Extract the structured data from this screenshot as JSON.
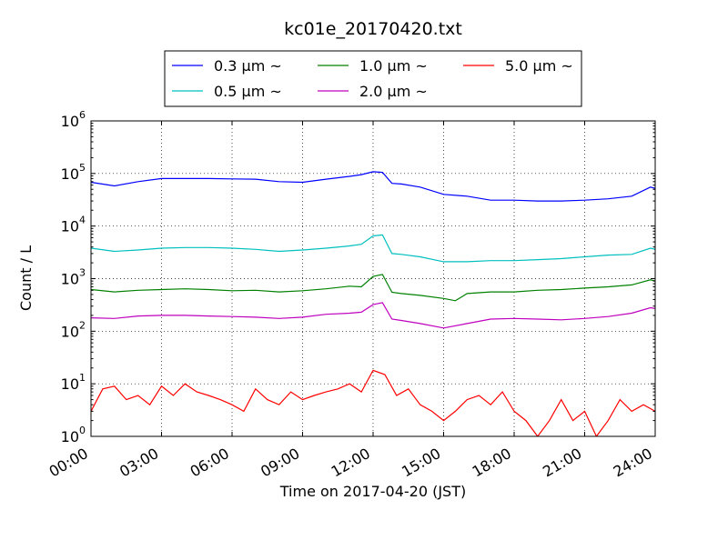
{
  "chart_data": {
    "type": "line",
    "title": "kc01e_20170420.txt",
    "xlabel": "Time on 2017-04-20 (JST)",
    "ylabel": "Count / L",
    "yscale": "log",
    "ylim": [
      1,
      1000000
    ],
    "xlim_hours": [
      0,
      24
    ],
    "grid": true,
    "legend_position": "top-center",
    "x_tick_labels": [
      "00:00",
      "03:00",
      "06:00",
      "09:00",
      "12:00",
      "15:00",
      "18:00",
      "21:00",
      "24:00"
    ],
    "y_tick_labels": [
      {
        "base": "10",
        "exp": "0"
      },
      {
        "base": "10",
        "exp": "1"
      },
      {
        "base": "10",
        "exp": "2"
      },
      {
        "base": "10",
        "exp": "3"
      },
      {
        "base": "10",
        "exp": "4"
      },
      {
        "base": "10",
        "exp": "5"
      },
      {
        "base": "10",
        "exp": "6"
      }
    ],
    "series": [
      {
        "name": "0.3 μm ~",
        "color": "#0000ff",
        "x": [
          0,
          1,
          2,
          3,
          4,
          5,
          6,
          7,
          8,
          9,
          10,
          11,
          11.5,
          12,
          12.4,
          12.8,
          13.2,
          14,
          15,
          16,
          17,
          18,
          19,
          20,
          21,
          22,
          23,
          23.8,
          24
        ],
        "y": [
          68000,
          58000,
          70000,
          80000,
          80000,
          80000,
          79000,
          78000,
          70000,
          68000,
          78000,
          88000,
          95000,
          108000,
          105000,
          65000,
          63000,
          55000,
          40000,
          37000,
          31000,
          31000,
          30000,
          30000,
          31000,
          33000,
          37000,
          55000,
          52000
        ]
      },
      {
        "name": "0.5 μm ~",
        "color": "#00bfbf",
        "x": [
          0,
          1,
          2,
          3,
          4,
          5,
          6,
          7,
          8,
          9,
          10,
          11,
          11.5,
          12,
          12.4,
          12.8,
          13.2,
          14,
          15,
          16,
          17,
          18,
          19,
          20,
          21,
          22,
          23,
          23.8,
          24
        ],
        "y": [
          3800,
          3300,
          3500,
          3800,
          3900,
          3900,
          3800,
          3600,
          3300,
          3500,
          3800,
          4200,
          4500,
          6500,
          6800,
          3000,
          2900,
          2600,
          2100,
          2100,
          2200,
          2200,
          2300,
          2400,
          2600,
          2800,
          2900,
          3800,
          3600
        ]
      },
      {
        "name": "1.0 μm ~",
        "color": "#008000",
        "x": [
          0,
          1,
          2,
          3,
          4,
          5,
          6,
          7,
          8,
          9,
          10,
          11,
          11.5,
          12,
          12.4,
          12.8,
          13.2,
          14,
          15,
          15.5,
          16,
          17,
          18,
          19,
          20,
          21,
          22,
          23,
          23.8,
          24
        ],
        "y": [
          620,
          560,
          600,
          620,
          640,
          620,
          590,
          600,
          560,
          590,
          640,
          720,
          700,
          1100,
          1200,
          550,
          520,
          480,
          420,
          380,
          520,
          560,
          560,
          600,
          620,
          660,
          700,
          760,
          950,
          900
        ]
      },
      {
        "name": "2.0 μm ~",
        "color": "#bf00bf",
        "x": [
          0,
          1,
          2,
          3,
          4,
          5,
          6,
          7,
          8,
          9,
          10,
          11,
          11.5,
          12,
          12.4,
          12.8,
          13.2,
          14,
          15,
          16,
          17,
          18,
          19,
          20,
          21,
          22,
          23,
          23.8,
          24
        ],
        "y": [
          180,
          175,
          195,
          200,
          200,
          195,
          190,
          185,
          175,
          185,
          210,
          220,
          230,
          320,
          350,
          170,
          160,
          140,
          115,
          140,
          170,
          175,
          170,
          165,
          175,
          190,
          220,
          280,
          270
        ]
      },
      {
        "name": "5.0 μm ~",
        "color": "#ff0000",
        "x": [
          0,
          0.5,
          1,
          1.5,
          2,
          2.5,
          3,
          3.5,
          4,
          4.5,
          5,
          5.5,
          6,
          6.5,
          7,
          7.5,
          8,
          8.5,
          9,
          9.5,
          10,
          10.5,
          11,
          11.5,
          12,
          12.5,
          13,
          13.5,
          14,
          14.5,
          15,
          15.5,
          16,
          16.5,
          17,
          17.5,
          18,
          18.5,
          19,
          19.5,
          20,
          20.5,
          21,
          21.5,
          22,
          22.5,
          23,
          23.5,
          24
        ],
        "y": [
          3,
          8,
          9,
          5,
          6,
          4,
          9,
          6,
          10,
          7,
          6,
          5,
          4,
          3,
          8,
          5,
          4,
          7,
          5,
          6,
          7,
          8,
          10,
          7,
          18,
          15,
          6,
          8,
          4,
          3,
          2,
          3,
          5,
          6,
          4,
          7,
          3,
          2,
          1,
          2,
          5,
          2,
          3,
          1,
          2,
          5,
          3,
          4,
          3
        ]
      }
    ]
  }
}
